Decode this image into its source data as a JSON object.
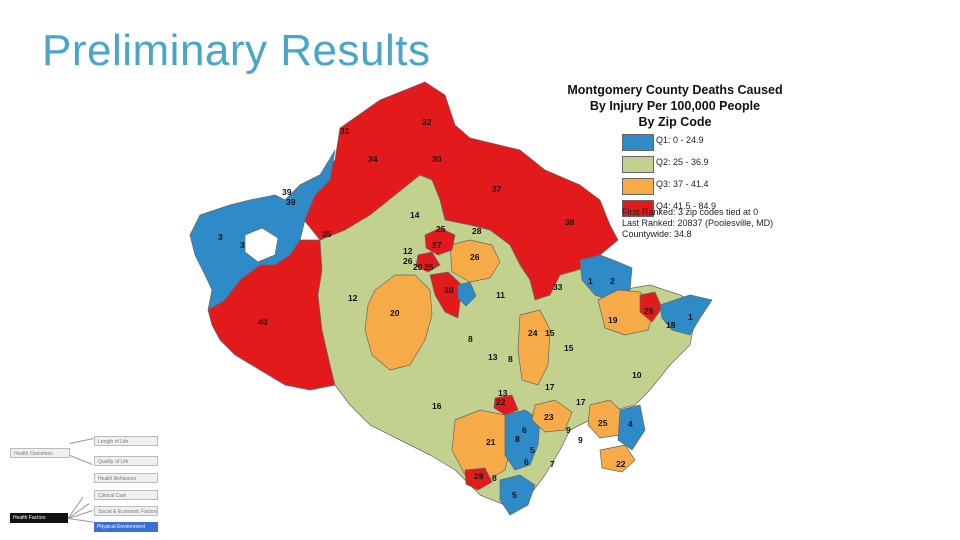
{
  "slide": {
    "title": "Preliminary Results"
  },
  "map": {
    "title_lines": [
      "Montgomery County Deaths Caused",
      "By Injury Per 100,000 People",
      "By Zip Code"
    ],
    "legend": [
      {
        "label": "Q1: 0 - 24.9",
        "color": "#2e8bc8"
      },
      {
        "label": "Q2: 25 - 36.9",
        "color": "#c2d28e"
      },
      {
        "label": "Q3: 37 - 41.4",
        "color": "#f7ab48"
      },
      {
        "label": "Q4: 41.5 - 84.9",
        "color": "#e31a1c"
      }
    ],
    "stats": {
      "first_ranked": "First Ranked: 3 zip codes tied at 0",
      "last_ranked": "Last Ranked: 20837 (Poolesville, MD)",
      "countywide": "Countywide: 34.8"
    },
    "zip_labels": [
      "32",
      "31",
      "34",
      "30",
      "39",
      "39",
      "37",
      "14",
      "35",
      "38",
      "3",
      "3",
      "25",
      "28",
      "12",
      "27",
      "26",
      "26",
      "20",
      "25",
      "1",
      "2",
      "12",
      "30",
      "11",
      "33",
      "40",
      "20",
      "24",
      "15",
      "19",
      "25",
      "18",
      "1",
      "8",
      "13",
      "8",
      "15",
      "10",
      "16",
      "13",
      "17",
      "22",
      "23",
      "17",
      "21",
      "6",
      "25",
      "4",
      "8",
      "9",
      "9",
      "6",
      "5",
      "7",
      "22",
      "28",
      "8",
      "5"
    ]
  },
  "diagram": {
    "health_outcomes": "Health Outcomes",
    "length_of_life": "Length of Life",
    "quality_of_life": "Quality of Life",
    "health_behaviors": "Health Behaviors",
    "clinical_care": "Clinical Care",
    "social_economic": "Social & Economic Factors",
    "physical_environment": "Physical Environment",
    "health_factors": "Health Factors"
  }
}
